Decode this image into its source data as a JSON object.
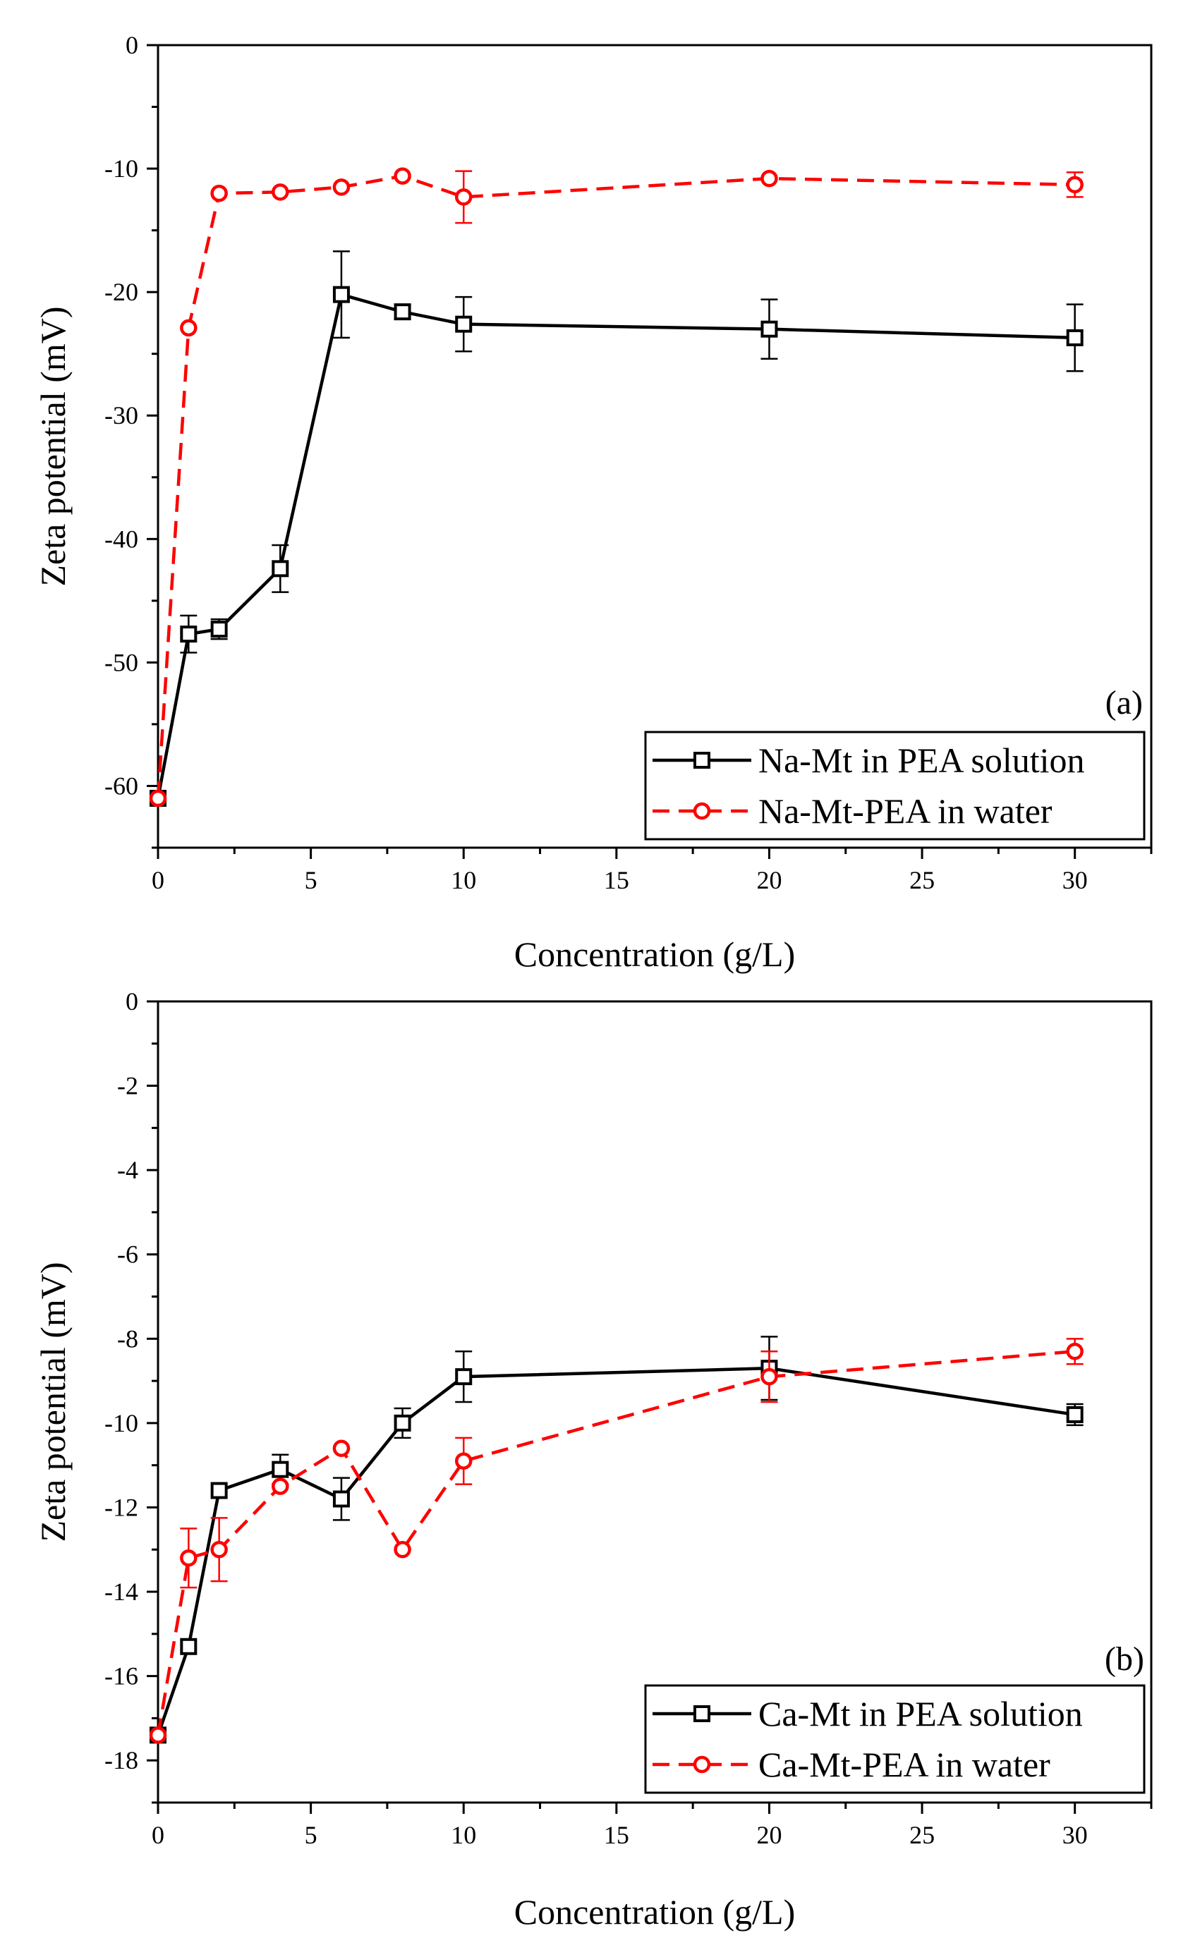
{
  "colors": {
    "black_series": "#000000",
    "red_series": "#ff0000"
  },
  "chart_data": [
    {
      "type": "line",
      "panel_label": "(a)",
      "xlabel": "Concentration (g/L)",
      "ylabel": "Zeta potential (mV)",
      "xlim": [
        0,
        32.5
      ],
      "ylim": [
        -65,
        0
      ],
      "xticks": [
        0,
        5,
        10,
        15,
        20,
        25,
        30
      ],
      "yticks": [
        0,
        -10,
        -20,
        -30,
        -40,
        -50,
        -60
      ],
      "xtick_labels": [
        "0",
        "5",
        "10",
        "15",
        "20",
        "25",
        "30"
      ],
      "ytick_labels": [
        "0",
        "-10",
        "-20",
        "-30",
        "-40",
        "-50",
        "-60"
      ],
      "legend_position": "bottom-right",
      "series": [
        {
          "name": "Na-Mt in PEA solution",
          "color": "#000000",
          "line": "solid",
          "marker": "square",
          "x": [
            0,
            1,
            2,
            4,
            6,
            8,
            10,
            20,
            30
          ],
          "y": [
            -61,
            -47.7,
            -47.3,
            -42.4,
            -20.2,
            -21.6,
            -22.6,
            -23,
            -23.7
          ],
          "err": [
            0,
            1.5,
            0.8,
            1.9,
            3.5,
            0.6,
            2.2,
            2.4,
            2.7
          ]
        },
        {
          "name": "Na-Mt-PEA in water",
          "color": "#ff0000",
          "line": "dashed",
          "marker": "circle",
          "x": [
            0,
            1,
            2,
            4,
            6,
            8,
            10,
            20,
            30
          ],
          "y": [
            -61,
            -22.9,
            -12,
            -11.9,
            -11.5,
            -10.6,
            -12.3,
            -10.8,
            -11.3
          ],
          "err": [
            0,
            0,
            0,
            0,
            0,
            0,
            2.1,
            0,
            1.0
          ]
        }
      ]
    },
    {
      "type": "line",
      "panel_label": "(b)",
      "xlabel": "Concentration (g/L)",
      "ylabel": "Zeta potential (mV)",
      "xlim": [
        0,
        32.5
      ],
      "ylim": [
        -19,
        0
      ],
      "xticks": [
        0,
        5,
        10,
        15,
        20,
        25,
        30
      ],
      "yticks": [
        0,
        -2,
        -4,
        -6,
        -8,
        -10,
        -12,
        -14,
        -16,
        -18
      ],
      "xtick_labels": [
        "0",
        "5",
        "10",
        "15",
        "20",
        "25",
        "30"
      ],
      "ytick_labels": [
        "0",
        "-2",
        "-4",
        "-6",
        "-8",
        "-10",
        "-12",
        "-14",
        "-16",
        "-18"
      ],
      "legend_position": "bottom-right",
      "series": [
        {
          "name": "Ca-Mt in PEA solution",
          "color": "#000000",
          "line": "solid",
          "marker": "square",
          "x": [
            0,
            1,
            2,
            4,
            6,
            8,
            10,
            20,
            30
          ],
          "y": [
            -17.4,
            -15.3,
            -11.6,
            -11.1,
            -11.8,
            -10,
            -8.9,
            -8.7,
            -9.8
          ],
          "err": [
            0,
            0,
            0,
            0.35,
            0.5,
            0.35,
            0.6,
            0.75,
            0.25
          ]
        },
        {
          "name": "Ca-Mt-PEA in water",
          "color": "#ff0000",
          "line": "dashed",
          "marker": "circle",
          "x": [
            0,
            1,
            2,
            4,
            6,
            8,
            10,
            20,
            30
          ],
          "y": [
            -17.4,
            -13.2,
            -13,
            -11.5,
            -10.6,
            -13,
            -10.9,
            -8.9,
            -8.3
          ],
          "err": [
            0,
            0.7,
            0.75,
            0,
            0,
            0,
            0.55,
            0.6,
            0.3
          ]
        }
      ]
    }
  ]
}
